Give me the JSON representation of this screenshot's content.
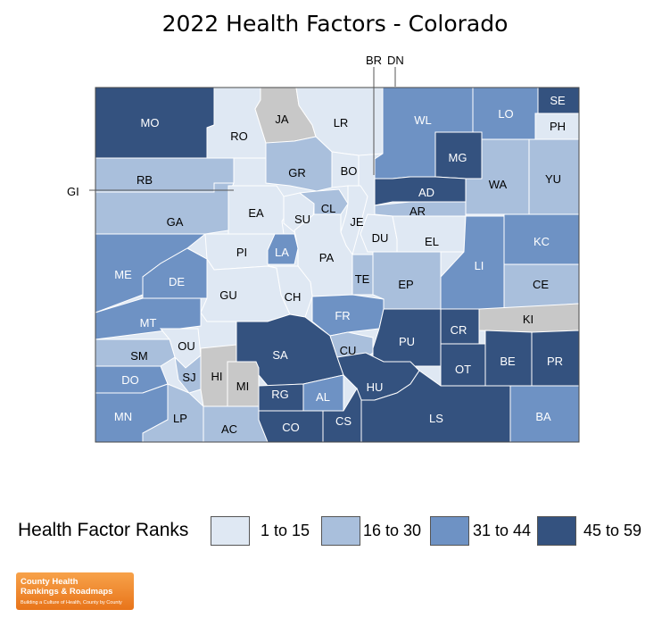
{
  "title": "2022 Health Factors - Colorado",
  "legend": {
    "title": "Health Factor Ranks",
    "items": [
      {
        "label": "1 to 15",
        "color": "#dfe8f3"
      },
      {
        "label": "16 to 30",
        "color": "#a9bfdc"
      },
      {
        "label": "31 to 44",
        "color": "#6e92c4"
      },
      {
        "label": "45 to 59",
        "color": "#34527f"
      }
    ]
  },
  "no_data_color": "#c8c8c8",
  "outside_labels": [
    "GI",
    "BR",
    "DN"
  ],
  "counties": [
    {
      "code": "MO",
      "tier": 4
    },
    {
      "code": "RO",
      "tier": 1
    },
    {
      "code": "JA",
      "tier": 0
    },
    {
      "code": "LR",
      "tier": 1
    },
    {
      "code": "WL",
      "tier": 3
    },
    {
      "code": "LO",
      "tier": 3
    },
    {
      "code": "SE",
      "tier": 4
    },
    {
      "code": "PH",
      "tier": 1
    },
    {
      "code": "MG",
      "tier": 4
    },
    {
      "code": "RB",
      "tier": 2
    },
    {
      "code": "GR",
      "tier": 2
    },
    {
      "code": "BO",
      "tier": 1
    },
    {
      "code": "AD",
      "tier": 4
    },
    {
      "code": "WA",
      "tier": 2
    },
    {
      "code": "YU",
      "tier": 2
    },
    {
      "code": "GA",
      "tier": 2
    },
    {
      "code": "EA",
      "tier": 1
    },
    {
      "code": "SU",
      "tier": 1
    },
    {
      "code": "CL",
      "tier": 2
    },
    {
      "code": "JE",
      "tier": 1
    },
    {
      "code": "AR",
      "tier": 2
    },
    {
      "code": "DU",
      "tier": 1
    },
    {
      "code": "EL",
      "tier": 1
    },
    {
      "code": "KC",
      "tier": 3
    },
    {
      "code": "PI",
      "tier": 1
    },
    {
      "code": "LA",
      "tier": 3
    },
    {
      "code": "PA",
      "tier": 1
    },
    {
      "code": "LI",
      "tier": 3
    },
    {
      "code": "ME",
      "tier": 3
    },
    {
      "code": "DE",
      "tier": 3
    },
    {
      "code": "GU",
      "tier": 1
    },
    {
      "code": "CH",
      "tier": 1
    },
    {
      "code": "TE",
      "tier": 2
    },
    {
      "code": "EP",
      "tier": 2
    },
    {
      "code": "CE",
      "tier": 2
    },
    {
      "code": "FR",
      "tier": 3
    },
    {
      "code": "MT",
      "tier": 3
    },
    {
      "code": "KI",
      "tier": 0
    },
    {
      "code": "CR",
      "tier": 4
    },
    {
      "code": "OU",
      "tier": 1
    },
    {
      "code": "SA",
      "tier": 4
    },
    {
      "code": "PU",
      "tier": 4
    },
    {
      "code": "SM",
      "tier": 2
    },
    {
      "code": "CU",
      "tier": 2
    },
    {
      "code": "OT",
      "tier": 4
    },
    {
      "code": "BE",
      "tier": 4
    },
    {
      "code": "PR",
      "tier": 4
    },
    {
      "code": "DO",
      "tier": 3
    },
    {
      "code": "SJ",
      "tier": 2
    },
    {
      "code": "HI",
      "tier": 0
    },
    {
      "code": "MI",
      "tier": 0
    },
    {
      "code": "HU",
      "tier": 4
    },
    {
      "code": "RG",
      "tier": 4
    },
    {
      "code": "AL",
      "tier": 3
    },
    {
      "code": "MN",
      "tier": 3
    },
    {
      "code": "LP",
      "tier": 2
    },
    {
      "code": "LS",
      "tier": 4
    },
    {
      "code": "BA",
      "tier": 3
    },
    {
      "code": "AC",
      "tier": 2
    },
    {
      "code": "CO",
      "tier": 4
    },
    {
      "code": "CS",
      "tier": 4
    }
  ],
  "logo": {
    "line1": "County Health",
    "line2": "Rankings & Roadmaps",
    "tagline": "Building a Culture of Health, County by County"
  }
}
